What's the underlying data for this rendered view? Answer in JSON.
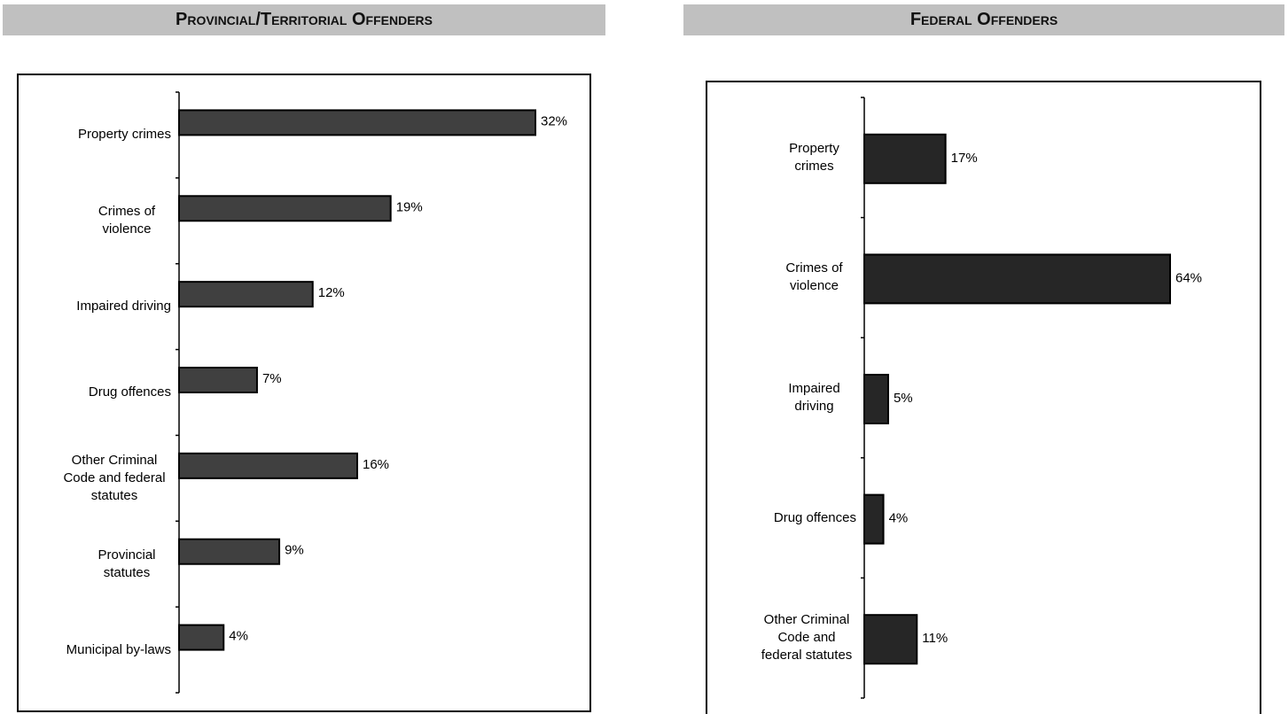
{
  "chart_data": [
    {
      "type": "bar",
      "title": "Provincial/Territorial Offenders",
      "color": "#404040",
      "categories": [
        "Property crimes",
        "Crimes of violence",
        "Impaired driving",
        "Drug offences",
        "Other Criminal Code and federal statutes",
        "Provincial statutes",
        "Municipal by-laws"
      ],
      "values": [
        32,
        19,
        12,
        7,
        16,
        9,
        4
      ],
      "value_labels": [
        "32%",
        "19%",
        "12%",
        "7%",
        "16%",
        "9%",
        "4%"
      ]
    },
    {
      "type": "bar",
      "title": "Federal Offenders",
      "color": "#262626",
      "categories": [
        "Property crimes",
        "Crimes of violence",
        "Impaired driving",
        "Drug offences",
        "Other Criminal Code and federal statutes"
      ],
      "values": [
        17,
        64,
        5,
        4,
        11
      ],
      "value_labels": [
        "17%",
        "64%",
        "5%",
        "4%",
        "11%"
      ]
    }
  ]
}
